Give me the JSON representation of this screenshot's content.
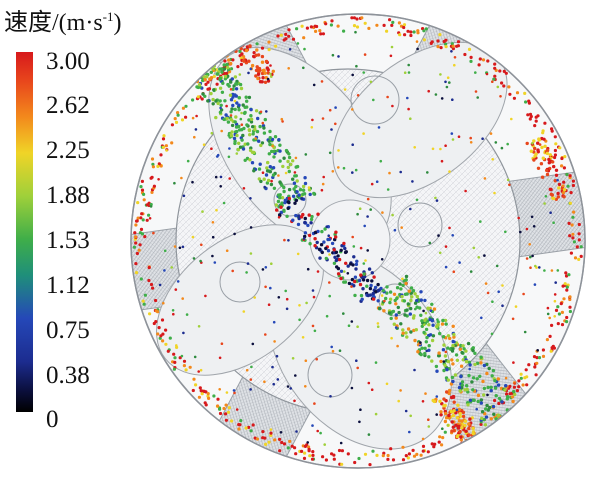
{
  "legend": {
    "title_main": "速度/(m·s",
    "title_sup": "-1",
    "title_close": ")",
    "ticks": [
      "3.00",
      "2.62",
      "2.25",
      "1.88",
      "1.53",
      "1.12",
      "0.75",
      "0.38",
      "0"
    ],
    "gradient_colors": [
      "#d7191c",
      "#f3891c",
      "#f0d427",
      "#9fd03a",
      "#3fae49",
      "#1f8f7a",
      "#2548b8",
      "#1c2c8f",
      "#000000"
    ]
  },
  "visualization": {
    "blade_count": 6,
    "particle_palette": [
      "#d7191c",
      "#e8461c",
      "#f3891c",
      "#f0d427",
      "#9fd03a",
      "#3fae49",
      "#2e8b3e",
      "#2548b8",
      "#1c2c8f",
      "#0b0f3d"
    ]
  }
}
